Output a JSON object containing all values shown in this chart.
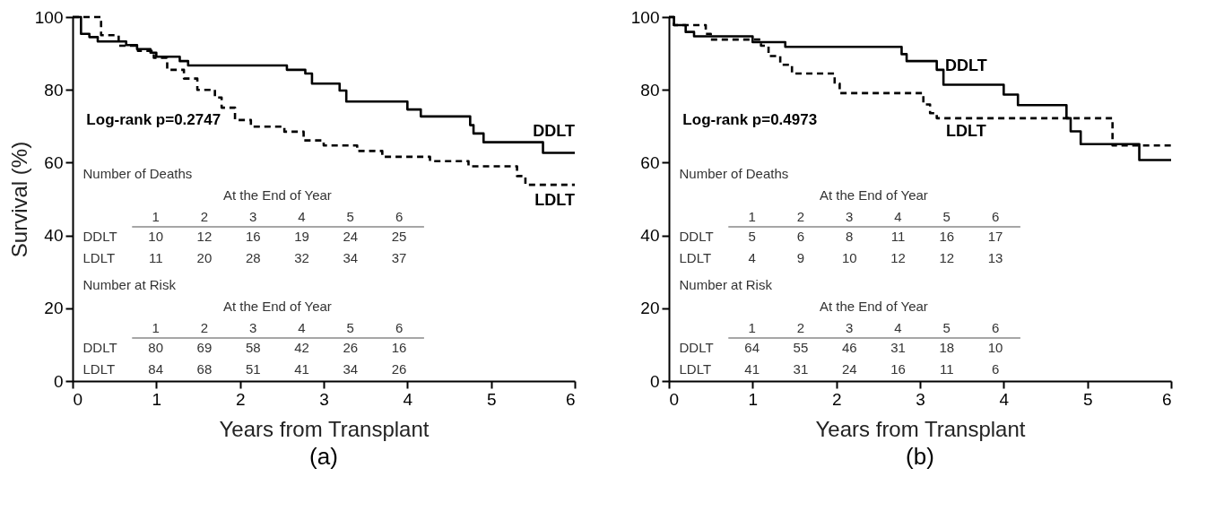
{
  "chart_data": [
    {
      "type": "step",
      "title": "(a)",
      "xlabel": "Years from Transplant",
      "ylabel": "Survival (%)",
      "xlim": [
        0,
        6
      ],
      "xticks": [
        0,
        1,
        2,
        3,
        4,
        5,
        6
      ],
      "ylim": [
        0,
        100
      ],
      "yticks": [
        0,
        20,
        40,
        60,
        80,
        100
      ],
      "grid": false,
      "series": [
        {
          "name": "DDLT",
          "color": "#000000",
          "line_style": "solid",
          "x": [
            0,
            0.1,
            0.2,
            0.3,
            0.64,
            0.77,
            0.93,
            1.0,
            1.28,
            1.38,
            2.56,
            2.78,
            2.86,
            3.19,
            3.27,
            4.0,
            4.16,
            4.75,
            4.79,
            4.91,
            5.62,
            6
          ],
          "values": [
            100,
            95.4,
            94.5,
            93.3,
            92.3,
            91.2,
            90.2,
            89.1,
            87.9,
            86.7,
            85.5,
            84.5,
            81.7,
            79.8,
            76.8,
            74.6,
            72.7,
            70.3,
            68,
            65.6,
            62.7,
            62.7
          ]
        },
        {
          "name": "LDLT",
          "color": "#000000",
          "line_style": "dashed",
          "x": [
            0,
            0.34,
            0.55,
            0.78,
            0.97,
            1.13,
            1.33,
            1.49,
            1.7,
            1.78,
            1.94,
            2.13,
            2.53,
            2.76,
            3.0,
            3.4,
            3.7,
            4.27,
            4.73,
            5.31,
            5.41,
            6
          ],
          "values": [
            100,
            95,
            92.1,
            90.7,
            88.8,
            85.5,
            83.1,
            80,
            77.9,
            75.1,
            71.7,
            69.9,
            68.5,
            66.1,
            64.7,
            63.2,
            61.6,
            60.4,
            59,
            56.3,
            53.9,
            53.9
          ]
        }
      ],
      "annotations": [
        "Log-rank p=0.2747",
        "Number of Deaths",
        "At the End of Year",
        "1 2 3 4 5 6",
        "DDLT 10 12 16 19 24 25",
        "LDLT 11 20 28 32 34 37",
        "Number at Risk",
        "At the End of Year",
        "1 2 3 4 5 6",
        "DDLT 80 69 58 42 26 16",
        "LDLT 84 68 51 41 34 26"
      ]
    },
    {
      "type": "step",
      "title": "(b)",
      "xlabel": "Years from Transplant",
      "xlim": [
        0,
        6
      ],
      "xticks": [
        0,
        1,
        2,
        3,
        4,
        5,
        6
      ],
      "ylim": [
        0,
        100
      ],
      "yticks": [
        0,
        20,
        40,
        60,
        80,
        100
      ],
      "grid": false,
      "series": [
        {
          "name": "DDLT",
          "color": "#000000",
          "line_style": "solid",
          "x": [
            0,
            0.06,
            0.2,
            0.3,
            1.0,
            1.39,
            2.78,
            2.84,
            3.2,
            3.28,
            4.0,
            4.17,
            4.75,
            4.8,
            4.92,
            5.62,
            6
          ],
          "values": [
            100,
            97.8,
            95.9,
            94.7,
            93.1,
            91.8,
            89.8,
            87.9,
            85.5,
            81.4,
            78.7,
            75.8,
            72.2,
            68.6,
            65.1,
            60.7,
            60.7
          ]
        },
        {
          "name": "LDLT",
          "color": "#000000",
          "line_style": "dashed",
          "x": [
            0,
            0.06,
            0.44,
            0.5,
            1.1,
            1.19,
            1.33,
            1.47,
            1.98,
            2.04,
            3.04,
            3.12,
            3.2,
            5.3,
            6
          ],
          "values": [
            100,
            97.8,
            95.4,
            93.8,
            92.1,
            89.3,
            86.9,
            84.5,
            81.7,
            79.1,
            76,
            73.6,
            72.2,
            64.7,
            64.7
          ]
        }
      ],
      "annotations": [
        "Log-rank p=0.4973",
        "Number of Deaths",
        "At the End of Year",
        "1 2 3 4 5 6",
        "DDLT 5 6 8 11 16 17",
        "LDLT 4 9 10 12 12 13",
        "Number at Risk",
        "At the End of Year",
        "1 2 3 4 5 6",
        "DDLT 64 55 46 31 18 10",
        "LDLT 41 31 24 16 11 6"
      ]
    }
  ]
}
